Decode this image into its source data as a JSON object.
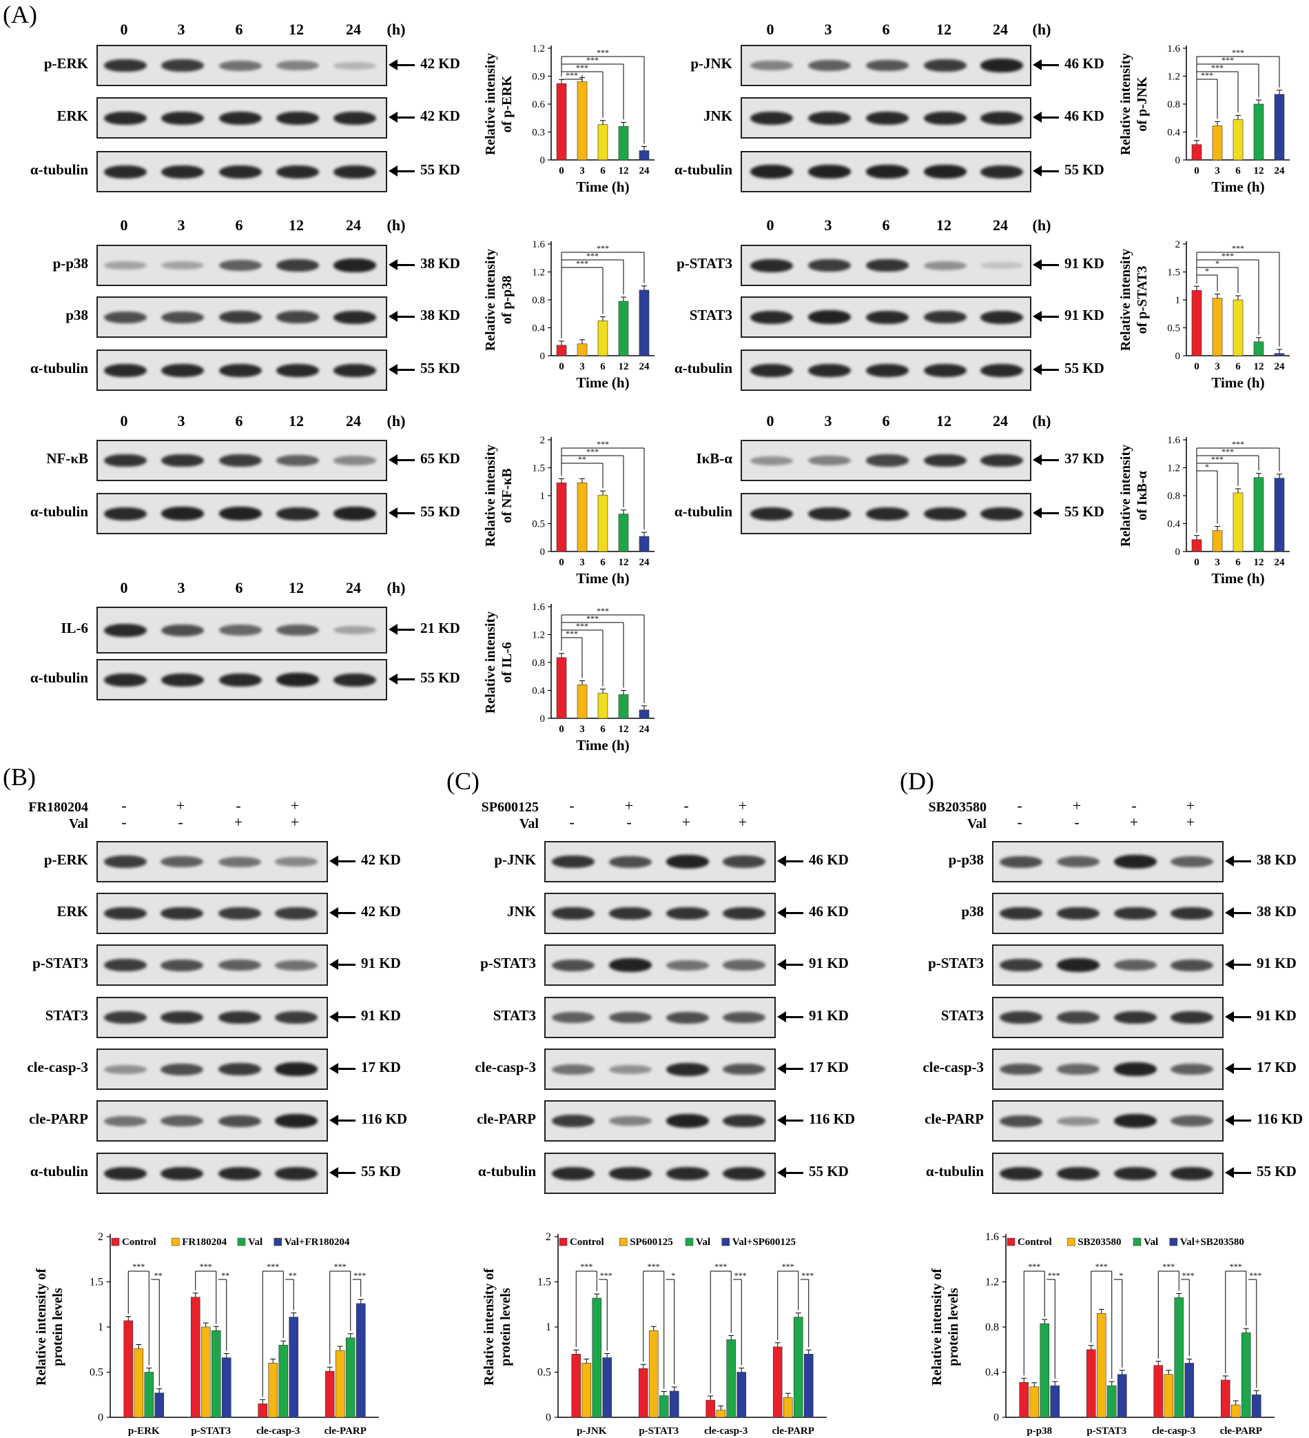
{
  "panel_labels": {
    "A": "(A)",
    "B": "(B)",
    "C": "(C)",
    "D": "(D)"
  },
  "timepoints": [
    "0",
    "3",
    "6",
    "12",
    "24"
  ],
  "time_unit": "(h)",
  "kd": {
    "k42": "42 KD",
    "k46": "46 KD",
    "k55": "55 KD",
    "k38": "38 KD",
    "k91": "91 KD",
    "k65": "65 KD",
    "k37": "37 KD",
    "k21": "21 KD",
    "k17": "17 KD",
    "k116": "116 KD"
  },
  "proteins": {
    "perk": "p-ERK",
    "erk": "ERK",
    "tub": "α-tubulin",
    "pjnk": "p-JNK",
    "jnk": "JNK",
    "pp38": "p-p38",
    "p38": "p38",
    "pstat3": "p-STAT3",
    "stat3": "STAT3",
    "nfkb": "NF-κB",
    "ikba": "IκB-α",
    "il6": "IL-6",
    "casp3": "cle-casp-3",
    "parp": "cle-PARP"
  },
  "treatments": {
    "B": {
      "inhibitor": "FR180204",
      "val": "Val",
      "inh_signs": [
        "-",
        "+",
        "-",
        "+"
      ],
      "val_signs": [
        "-",
        "-",
        "+",
        "+"
      ]
    },
    "C": {
      "inhibitor": "SP600125",
      "val": "Val",
      "inh_signs": [
        "-",
        "+",
        "-",
        "+"
      ],
      "val_signs": [
        "-",
        "-",
        "+",
        "+"
      ]
    },
    "D": {
      "inhibitor": "SB203580",
      "val": "Val",
      "inh_signs": [
        "-",
        "+",
        "-",
        "+"
      ],
      "val_signs": [
        "-",
        "-",
        "+",
        "+"
      ]
    }
  },
  "chart_data": [
    {
      "id": "perk",
      "type": "bar",
      "xlabel": "Time (h)",
      "ylabel": [
        "Relative intensity",
        "of p-ERK"
      ],
      "categories": [
        "0",
        "3",
        "6",
        "12",
        "24"
      ],
      "values": [
        0.82,
        0.84,
        0.38,
        0.36,
        0.1
      ],
      "ylim": [
        0,
        1.2
      ],
      "yticks": [
        "0",
        "0.3",
        "0.6",
        "0.9",
        "1.2"
      ],
      "sig": [
        "***",
        "***",
        "***",
        "***"
      ]
    },
    {
      "id": "pjnk",
      "type": "bar",
      "xlabel": "Time (h)",
      "ylabel": [
        "Relative intensity",
        "of p-JNK"
      ],
      "categories": [
        "0",
        "3",
        "6",
        "12",
        "24"
      ],
      "values": [
        0.22,
        0.49,
        0.58,
        0.8,
        0.94
      ],
      "ylim": [
        0,
        1.6
      ],
      "yticks": [
        "0",
        "0.4",
        "0.8",
        "1.2",
        "1.6"
      ],
      "sig": [
        "***",
        "***",
        "***",
        "***"
      ]
    },
    {
      "id": "pp38",
      "type": "bar",
      "xlabel": "Time (h)",
      "ylabel": [
        "Relative intensity",
        "of p-p38"
      ],
      "categories": [
        "0",
        "3",
        "6",
        "12",
        "24"
      ],
      "values": [
        0.15,
        0.17,
        0.5,
        0.78,
        0.94
      ],
      "ylim": [
        0,
        1.6
      ],
      "yticks": [
        "0",
        "0.4",
        "0.8",
        "1.2",
        "1.6"
      ],
      "sig": [
        "***",
        "***",
        "***"
      ]
    },
    {
      "id": "pstat3",
      "type": "bar",
      "xlabel": "Time (h)",
      "ylabel": [
        "Relative intensity",
        "of p-STAT3"
      ],
      "categories": [
        "0",
        "3",
        "6",
        "12",
        "24"
      ],
      "values": [
        1.17,
        1.03,
        1.0,
        0.25,
        0.04
      ],
      "ylim": [
        0,
        2
      ],
      "yticks": [
        "0",
        "0.5",
        "1",
        "1.5",
        "2"
      ],
      "sig": [
        "*",
        "*",
        "***",
        "***"
      ]
    },
    {
      "id": "nfkb",
      "type": "bar",
      "xlabel": "Time (h)",
      "ylabel": [
        "Relative intensity",
        "of NF-κB"
      ],
      "categories": [
        "0",
        "3",
        "6",
        "12",
        "24"
      ],
      "values": [
        1.23,
        1.23,
        1.01,
        0.67,
        0.27
      ],
      "ylim": [
        0,
        2
      ],
      "yticks": [
        "0",
        "0.5",
        "1",
        "1.5",
        "2"
      ],
      "sig": [
        "**",
        "***",
        "***"
      ]
    },
    {
      "id": "ikba",
      "type": "bar",
      "xlabel": "Time (h)",
      "ylabel": [
        "Relative intensity",
        "of IκB-α"
      ],
      "categories": [
        "0",
        "3",
        "6",
        "12",
        "24"
      ],
      "values": [
        0.17,
        0.3,
        0.84,
        1.06,
        1.05
      ],
      "ylim": [
        0,
        1.6
      ],
      "yticks": [
        "0",
        "0.4",
        "0.8",
        "1.2",
        "1.6"
      ],
      "sig": [
        "*",
        "***",
        "***",
        "***"
      ]
    },
    {
      "id": "il6",
      "type": "bar",
      "xlabel": "Time (h)",
      "ylabel": [
        "Relative intensity",
        "of IL-6"
      ],
      "categories": [
        "0",
        "3",
        "6",
        "12",
        "24"
      ],
      "values": [
        0.87,
        0.48,
        0.36,
        0.34,
        0.12
      ],
      "ylim": [
        0,
        1.6
      ],
      "yticks": [
        "0",
        "0.4",
        "0.8",
        "1.2",
        "1.6"
      ],
      "sig": [
        "***",
        "***",
        "***",
        "***"
      ]
    },
    {
      "id": "B",
      "type": "bar",
      "ylabel": [
        "Relative intensity of",
        "protein levels"
      ],
      "categories": [
        "p-ERK",
        "p-STAT3",
        "cle-casp-3",
        "cle-PARP"
      ],
      "ylim": [
        0,
        2
      ],
      "yticks": [
        "0",
        "0.5",
        "1",
        "1.5",
        "2"
      ],
      "series": [
        {
          "name": "Control",
          "values": [
            1.07,
            1.33,
            0.15,
            0.51
          ]
        },
        {
          "name": "FR180204",
          "values": [
            0.76,
            1.0,
            0.6,
            0.74
          ]
        },
        {
          "name": "Val",
          "values": [
            0.5,
            0.96,
            0.8,
            0.88
          ]
        },
        {
          "name": "Val+FR180204",
          "values": [
            0.27,
            0.66,
            1.11,
            1.26
          ]
        }
      ],
      "sig": [
        [
          "***",
          "**"
        ],
        [
          "***",
          "**"
        ],
        [
          "***",
          "**"
        ],
        [
          "***",
          "***"
        ]
      ]
    },
    {
      "id": "C",
      "type": "bar",
      "ylabel": [
        "Relative intensity of",
        "protein levels"
      ],
      "categories": [
        "p-JNK",
        "p-STAT3",
        "cle-casp-3",
        "cle-PARP"
      ],
      "ylim": [
        0,
        2
      ],
      "yticks": [
        "0",
        "0.5",
        "1",
        "1.5",
        "2"
      ],
      "series": [
        {
          "name": "Control",
          "values": [
            0.7,
            0.54,
            0.19,
            0.78
          ]
        },
        {
          "name": "SP600125",
          "values": [
            0.6,
            0.96,
            0.08,
            0.22
          ]
        },
        {
          "name": "Val",
          "values": [
            1.32,
            0.24,
            0.86,
            1.11
          ]
        },
        {
          "name": "Val+SP600125",
          "values": [
            0.66,
            0.29,
            0.5,
            0.7
          ]
        }
      ],
      "sig": [
        [
          "***",
          "***"
        ],
        [
          "***",
          "*"
        ],
        [
          "***",
          "***"
        ],
        [
          "***",
          "***"
        ]
      ]
    },
    {
      "id": "D",
      "type": "bar",
      "ylabel": [
        "Relative intensity of",
        "protein levels"
      ],
      "categories": [
        "p-p38",
        "p-STAT3",
        "cle-casp-3",
        "cle-PARP"
      ],
      "ylim": [
        0,
        1.6
      ],
      "yticks": [
        "0",
        "0.4",
        "0.8",
        "1.2",
        "1.6"
      ],
      "series": [
        {
          "name": "Control",
          "values": [
            0.31,
            0.6,
            0.46,
            0.33
          ]
        },
        {
          "name": "SB203580",
          "values": [
            0.27,
            0.92,
            0.38,
            0.11
          ]
        },
        {
          "name": "Val",
          "values": [
            0.83,
            0.28,
            1.06,
            0.75
          ]
        },
        {
          "name": "Val+SB203580",
          "values": [
            0.28,
            0.38,
            0.48,
            0.2
          ]
        }
      ],
      "sig": [
        [
          "***",
          "***"
        ],
        [
          "***",
          "*"
        ],
        [
          "***",
          "***"
        ],
        [
          "***",
          "***"
        ]
      ]
    }
  ],
  "colors": {
    "series": [
      "#e8202a",
      "#f7b511",
      "#1ea74a",
      "#2c3f99"
    ],
    "time": [
      "#e8202a",
      "#f7b511",
      "#f0dc1c",
      "#1ea74a",
      "#2c3f99"
    ]
  }
}
